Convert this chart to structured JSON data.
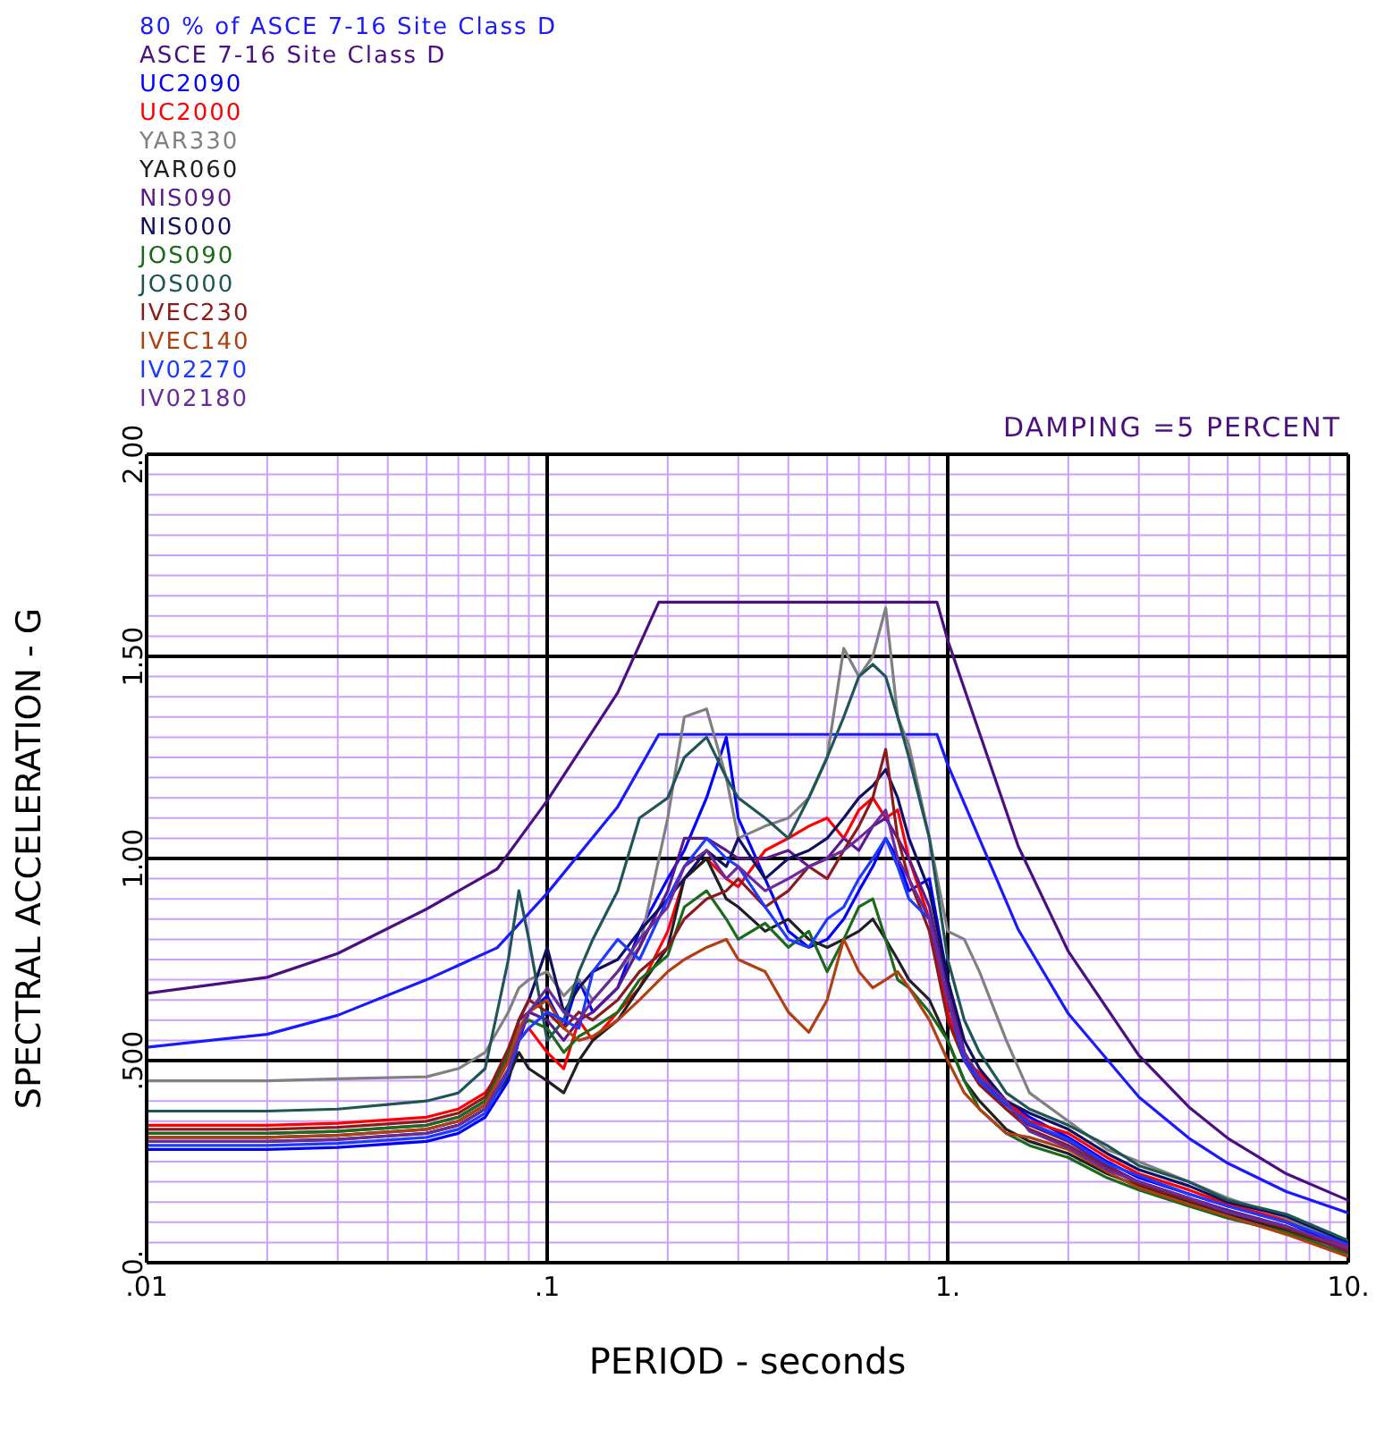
{
  "chart_data": {
    "type": "line",
    "xlabel": "PERIOD - seconds",
    "ylabel": "SPECTRAL ACCELERATION - G",
    "annotations": [
      "DAMPING =5 PERCENT"
    ],
    "log": "x",
    "grid": true,
    "legend": "top left",
    "marker": "none",
    "line_style": "solid",
    "xlim": [
      0.01,
      10
    ],
    "xticks": [
      {
        "value": 0.01,
        "label": ".01"
      },
      {
        "value": 0.02,
        "label": null
      },
      {
        "value": 0.03,
        "label": null
      },
      {
        "value": 0.04,
        "label": null
      },
      {
        "value": 0.05,
        "label": null
      },
      {
        "value": 0.06,
        "label": null
      },
      {
        "value": 0.07,
        "label": null
      },
      {
        "value": 0.08,
        "label": null
      },
      {
        "value": 0.09,
        "label": null
      },
      {
        "value": 0.1,
        "label": ".1"
      },
      {
        "value": 0.2,
        "label": null
      },
      {
        "value": 0.3,
        "label": null
      },
      {
        "value": 0.4,
        "label": null
      },
      {
        "value": 0.5,
        "label": null
      },
      {
        "value": 0.6,
        "label": null
      },
      {
        "value": 0.7,
        "label": null
      },
      {
        "value": 0.8,
        "label": null
      },
      {
        "value": 0.9,
        "label": null
      },
      {
        "value": 1,
        "label": "1."
      },
      {
        "value": 2,
        "label": null
      },
      {
        "value": 3,
        "label": null
      },
      {
        "value": 4,
        "label": null
      },
      {
        "value": 5,
        "label": null
      },
      {
        "value": 6,
        "label": null
      },
      {
        "value": 7,
        "label": null
      },
      {
        "value": 8,
        "label": null
      },
      {
        "value": 9,
        "label": null
      },
      {
        "value": 10,
        "label": "10."
      }
    ],
    "ylim": [
      0,
      2
    ],
    "yticks": [
      {
        "value": 0,
        "label": "0."
      },
      {
        "value": 0.05,
        "label": null
      },
      {
        "value": 0.1,
        "label": null
      },
      {
        "value": 0.15,
        "label": null
      },
      {
        "value": 0.2,
        "label": null
      },
      {
        "value": 0.25,
        "label": null
      },
      {
        "value": 0.3,
        "label": null
      },
      {
        "value": 0.35,
        "label": null
      },
      {
        "value": 0.4,
        "label": null
      },
      {
        "value": 0.45,
        "label": null
      },
      {
        "value": 0.5,
        "label": ".500"
      },
      {
        "value": 0.55,
        "label": null
      },
      {
        "value": 0.6,
        "label": null
      },
      {
        "value": 0.65,
        "label": null
      },
      {
        "value": 0.7,
        "label": null
      },
      {
        "value": 0.75,
        "label": null
      },
      {
        "value": 0.8,
        "label": null
      },
      {
        "value": 0.85,
        "label": null
      },
      {
        "value": 0.9,
        "label": null
      },
      {
        "value": 0.95,
        "label": null
      },
      {
        "value": 1,
        "label": "1.00"
      },
      {
        "value": 1.05,
        "label": null
      },
      {
        "value": 1.1,
        "label": null
      },
      {
        "value": 1.15,
        "label": null
      },
      {
        "value": 1.2,
        "label": null
      },
      {
        "value": 1.25,
        "label": null
      },
      {
        "value": 1.3,
        "label": null
      },
      {
        "value": 1.35,
        "label": null
      },
      {
        "value": 1.4,
        "label": null
      },
      {
        "value": 1.45,
        "label": null
      },
      {
        "value": 1.5,
        "label": "1.50"
      },
      {
        "value": 1.55,
        "label": null
      },
      {
        "value": 1.6,
        "label": null
      },
      {
        "value": 1.65,
        "label": null
      },
      {
        "value": 1.7,
        "label": null
      },
      {
        "value": 1.75,
        "label": null
      },
      {
        "value": 1.8,
        "label": null
      },
      {
        "value": 1.85,
        "label": null
      },
      {
        "value": 1.9,
        "label": null
      },
      {
        "value": 1.95,
        "label": null
      },
      {
        "value": 2,
        "label": "2.00"
      }
    ],
    "x": [
      0.01,
      0.02,
      0.03,
      0.05,
      0.06,
      0.07,
      0.08,
      0.085,
      0.09,
      0.1,
      0.11,
      0.12,
      0.13,
      0.15,
      0.17,
      0.2,
      0.22,
      0.25,
      0.28,
      0.3,
      0.35,
      0.4,
      0.45,
      0.5,
      0.55,
      0.6,
      0.65,
      0.7,
      0.75,
      0.8,
      0.9,
      1,
      1.1,
      1.2,
      1.4,
      1.6,
      2,
      2.5,
      3,
      4,
      5,
      7,
      10
    ],
    "series": [
      {
        "name": "80 % of ASCE 7-16 Site Class D",
        "color": "#1a1aff",
        "x": [
          0.01,
          0.02,
          0.03,
          0.05,
          0.075,
          0.1,
          0.15,
          0.19,
          0.94,
          1,
          1.5,
          2,
          3,
          4,
          5,
          7,
          10
        ],
        "values": [
          0.533,
          0.565,
          0.612,
          0.7,
          0.779,
          0.914,
          1.128,
          1.307,
          1.307,
          1.232,
          0.824,
          0.616,
          0.41,
          0.308,
          0.246,
          0.176,
          0.123
        ]
      },
      {
        "name": "ASCE 7-16 Site Class D",
        "color": "#4b0f80",
        "x": [
          0.01,
          0.02,
          0.03,
          0.05,
          0.075,
          0.1,
          0.15,
          0.19,
          0.94,
          1,
          1.5,
          2,
          3,
          4,
          5,
          7,
          10
        ],
        "values": [
          0.666,
          0.706,
          0.765,
          0.875,
          0.974,
          1.143,
          1.41,
          1.634,
          1.634,
          1.54,
          1.03,
          0.77,
          0.513,
          0.385,
          0.308,
          0.22,
          0.154
        ]
      },
      {
        "name": "UC2090",
        "color": "#0000ff",
        "values": [
          0.28,
          0.28,
          0.285,
          0.3,
          0.32,
          0.36,
          0.45,
          0.55,
          0.62,
          0.66,
          0.58,
          0.7,
          0.62,
          0.68,
          0.82,
          0.95,
          1.02,
          1.15,
          1.3,
          1.1,
          0.95,
          0.82,
          0.78,
          0.8,
          0.85,
          0.92,
          0.98,
          1.05,
          1.0,
          0.92,
          0.95,
          0.7,
          0.52,
          0.45,
          0.4,
          0.36,
          0.31,
          0.25,
          0.21,
          0.17,
          0.14,
          0.1,
          0.035
        ]
      },
      {
        "name": "UC2000",
        "color": "#ff0000",
        "values": [
          0.34,
          0.34,
          0.345,
          0.36,
          0.38,
          0.42,
          0.5,
          0.55,
          0.58,
          0.52,
          0.48,
          0.6,
          0.55,
          0.62,
          0.68,
          0.82,
          0.95,
          1.0,
          0.95,
          0.93,
          1.02,
          1.05,
          1.08,
          1.1,
          1.05,
          1.12,
          1.15,
          1.1,
          1.12,
          1.0,
          0.85,
          0.62,
          0.5,
          0.47,
          0.4,
          0.35,
          0.32,
          0.26,
          0.22,
          0.18,
          0.145,
          0.105,
          0.04
        ]
      },
      {
        "name": "YAR330",
        "color": "#808080",
        "values": [
          0.45,
          0.45,
          0.455,
          0.46,
          0.48,
          0.52,
          0.62,
          0.68,
          0.7,
          0.72,
          0.66,
          0.7,
          0.65,
          0.72,
          0.78,
          1.1,
          1.35,
          1.37,
          1.2,
          1.05,
          1.08,
          1.1,
          1.15,
          1.25,
          1.52,
          1.45,
          1.5,
          1.62,
          1.35,
          1.28,
          1.05,
          0.82,
          0.8,
          0.72,
          0.55,
          0.42,
          0.35,
          0.28,
          0.25,
          0.2,
          0.16,
          0.11,
          0.045
        ]
      },
      {
        "name": "YAR060",
        "color": "#202020",
        "values": [
          0.3,
          0.3,
          0.305,
          0.32,
          0.34,
          0.38,
          0.46,
          0.52,
          0.48,
          0.45,
          0.42,
          0.5,
          0.55,
          0.6,
          0.68,
          0.78,
          0.95,
          1.0,
          0.9,
          0.88,
          0.82,
          0.85,
          0.8,
          0.78,
          0.8,
          0.82,
          0.85,
          0.8,
          0.75,
          0.7,
          0.65,
          0.55,
          0.45,
          0.4,
          0.33,
          0.3,
          0.27,
          0.22,
          0.19,
          0.15,
          0.12,
          0.08,
          0.03
        ]
      },
      {
        "name": "NIS090",
        "color": "#5b1a8a",
        "values": [
          0.32,
          0.32,
          0.325,
          0.34,
          0.36,
          0.4,
          0.52,
          0.6,
          0.62,
          0.6,
          0.55,
          0.6,
          0.62,
          0.68,
          0.78,
          0.92,
          1.05,
          1.05,
          1.02,
          1.0,
          1.0,
          1.02,
          0.98,
          1.0,
          1.05,
          1.02,
          1.08,
          1.1,
          1.05,
          1.0,
          0.88,
          0.68,
          0.52,
          0.45,
          0.38,
          0.34,
          0.3,
          0.24,
          0.2,
          0.16,
          0.13,
          0.09,
          0.025
        ]
      },
      {
        "name": "NIS000",
        "color": "#101060",
        "values": [
          0.31,
          0.31,
          0.315,
          0.33,
          0.35,
          0.39,
          0.5,
          0.6,
          0.65,
          0.78,
          0.62,
          0.68,
          0.72,
          0.75,
          0.82,
          0.9,
          0.95,
          1.02,
          0.98,
          1.05,
          0.95,
          1.0,
          1.02,
          1.05,
          1.1,
          1.15,
          1.18,
          1.22,
          1.15,
          1.05,
          0.92,
          0.7,
          0.55,
          0.48,
          0.4,
          0.37,
          0.33,
          0.27,
          0.23,
          0.19,
          0.15,
          0.115,
          0.05
        ]
      },
      {
        "name": "JOS090",
        "color": "#1a6a1a",
        "values": [
          0.32,
          0.32,
          0.325,
          0.34,
          0.36,
          0.4,
          0.52,
          0.58,
          0.6,
          0.58,
          0.52,
          0.56,
          0.58,
          0.62,
          0.7,
          0.76,
          0.88,
          0.92,
          0.85,
          0.8,
          0.84,
          0.78,
          0.82,
          0.72,
          0.8,
          0.88,
          0.9,
          0.8,
          0.7,
          0.68,
          0.62,
          0.55,
          0.45,
          0.38,
          0.32,
          0.29,
          0.26,
          0.21,
          0.18,
          0.14,
          0.11,
          0.075,
          0.02
        ]
      },
      {
        "name": "JOS000",
        "color": "#1f5555",
        "values": [
          0.375,
          0.375,
          0.38,
          0.4,
          0.42,
          0.48,
          0.75,
          0.92,
          0.8,
          0.55,
          0.6,
          0.72,
          0.8,
          0.92,
          1.1,
          1.15,
          1.25,
          1.3,
          1.2,
          1.15,
          1.1,
          1.05,
          1.15,
          1.25,
          1.35,
          1.45,
          1.48,
          1.45,
          1.35,
          1.25,
          1.05,
          0.75,
          0.6,
          0.52,
          0.42,
          0.38,
          0.34,
          0.29,
          0.24,
          0.2,
          0.155,
          0.12,
          0.055
        ]
      },
      {
        "name": "IVEC230",
        "color": "#8b1a1a",
        "values": [
          0.33,
          0.33,
          0.335,
          0.35,
          0.37,
          0.41,
          0.53,
          0.6,
          0.65,
          0.62,
          0.58,
          0.62,
          0.6,
          0.65,
          0.72,
          0.78,
          0.85,
          0.9,
          0.92,
          0.95,
          0.88,
          0.92,
          0.98,
          0.95,
          1.02,
          1.08,
          1.15,
          1.27,
          1.05,
          0.95,
          0.82,
          0.6,
          0.5,
          0.44,
          0.38,
          0.33,
          0.29,
          0.235,
          0.195,
          0.155,
          0.125,
          0.085,
          0.03
        ]
      },
      {
        "name": "IVEC140",
        "color": "#b04010",
        "values": [
          0.31,
          0.31,
          0.315,
          0.33,
          0.35,
          0.39,
          0.5,
          0.58,
          0.62,
          0.65,
          0.58,
          0.55,
          0.56,
          0.6,
          0.65,
          0.72,
          0.75,
          0.78,
          0.8,
          0.75,
          0.72,
          0.62,
          0.57,
          0.65,
          0.8,
          0.72,
          0.68,
          0.7,
          0.72,
          0.68,
          0.6,
          0.5,
          0.42,
          0.38,
          0.32,
          0.31,
          0.28,
          0.225,
          0.185,
          0.145,
          0.115,
          0.07,
          0.015
        ]
      },
      {
        "name": "IV02270",
        "color": "#1a3aff",
        "values": [
          0.29,
          0.29,
          0.295,
          0.31,
          0.33,
          0.37,
          0.47,
          0.55,
          0.58,
          0.62,
          0.6,
          0.58,
          0.72,
          0.8,
          0.75,
          0.9,
          0.98,
          1.05,
          1.0,
          0.98,
          0.88,
          0.8,
          0.78,
          0.85,
          0.88,
          0.95,
          1.0,
          1.05,
          0.98,
          0.9,
          0.85,
          0.65,
          0.5,
          0.45,
          0.39,
          0.345,
          0.305,
          0.245,
          0.215,
          0.17,
          0.14,
          0.1,
          0.045
        ]
      },
      {
        "name": "IV02180",
        "color": "#6a2a9a",
        "values": [
          0.3,
          0.3,
          0.305,
          0.32,
          0.34,
          0.38,
          0.48,
          0.56,
          0.62,
          0.68,
          0.62,
          0.6,
          0.65,
          0.72,
          0.8,
          0.88,
          0.98,
          1.02,
          0.95,
          0.98,
          0.92,
          0.95,
          0.98,
          1.0,
          1.02,
          1.05,
          1.08,
          1.12,
          1.0,
          0.95,
          0.85,
          0.65,
          0.52,
          0.46,
          0.4,
          0.325,
          0.285,
          0.23,
          0.2,
          0.16,
          0.125,
          0.09,
          0.035
        ]
      }
    ]
  }
}
